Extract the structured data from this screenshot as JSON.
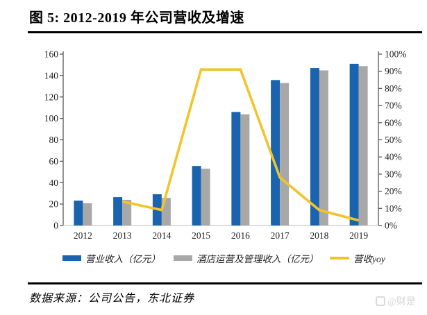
{
  "header": {
    "figure_label": "图 5: 2012-2019 年公司营收及增速"
  },
  "footer": {
    "source": "数据来源：公司公告，东北证券",
    "watermark": "@财是"
  },
  "colors": {
    "bar_blue": "#1A63AE",
    "bar_gray": "#A8A8A8",
    "line_yellow": "#F2C42A",
    "axis": "#595959",
    "x_axis_line": "#C9C9C9",
    "tick_text": "#1f1f1f",
    "rule_black": "#000000",
    "watermark_gray": "#d5d5d5"
  },
  "chart_data": {
    "type": "bar",
    "subtype": "grouped bars with secondary-axis line (combo)",
    "title": "2012-2019 年公司营收及增速",
    "categories": [
      "2012",
      "2013",
      "2014",
      "2015",
      "2016",
      "2017",
      "2018",
      "2019"
    ],
    "series": [
      {
        "name": "营业收入（亿元）",
        "type": "bar",
        "axis": "left",
        "color": "#1A63AE",
        "values": [
          23.2,
          26.5,
          29.2,
          55.6,
          106.0,
          135.8,
          147.0,
          151.0
        ]
      },
      {
        "name": "酒店运营及管理收入（亿元）",
        "type": "bar",
        "axis": "left",
        "color": "#A8A8A8",
        "values": [
          20.8,
          24.0,
          25.8,
          53.0,
          103.8,
          133.0,
          144.8,
          148.8
        ]
      },
      {
        "name": "营收yoy",
        "type": "line",
        "axis": "right",
        "color": "#F2C42A",
        "values": [
          null,
          0.14,
          0.09,
          0.91,
          0.91,
          0.28,
          0.09,
          0.03
        ]
      }
    ],
    "left_axis": {
      "min": 0,
      "max": 160,
      "step": 20,
      "tick_labels": [
        "0",
        "20",
        "40",
        "60",
        "80",
        "100",
        "120",
        "140",
        "160"
      ]
    },
    "right_axis": {
      "min": 0,
      "max": 1,
      "step": 0.1,
      "tick_labels": [
        "0%",
        "10%",
        "20%",
        "30%",
        "40%",
        "50%",
        "60%",
        "70%",
        "80%",
        "90%",
        "100%"
      ]
    },
    "grid": false,
    "legend_position": "bottom",
    "xlabel": "",
    "ylabel": ""
  }
}
